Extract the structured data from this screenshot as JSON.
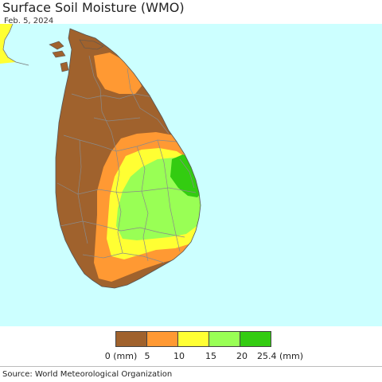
{
  "title": "Surface Soil Moisture (WMO)",
  "date": "Feb. 5, 2024",
  "legend": {
    "colors": [
      "#a0622d",
      "#ff9933",
      "#ffff33",
      "#99ff55",
      "#33cc11"
    ],
    "ticks": [
      "0 (mm)",
      "5",
      "10",
      "15",
      "20",
      "25.4 (mm)"
    ]
  },
  "source": "Source: World Meteorological Organization",
  "colors": {
    "ocean": "#ccffff",
    "boundary": "#8a8a8a"
  }
}
